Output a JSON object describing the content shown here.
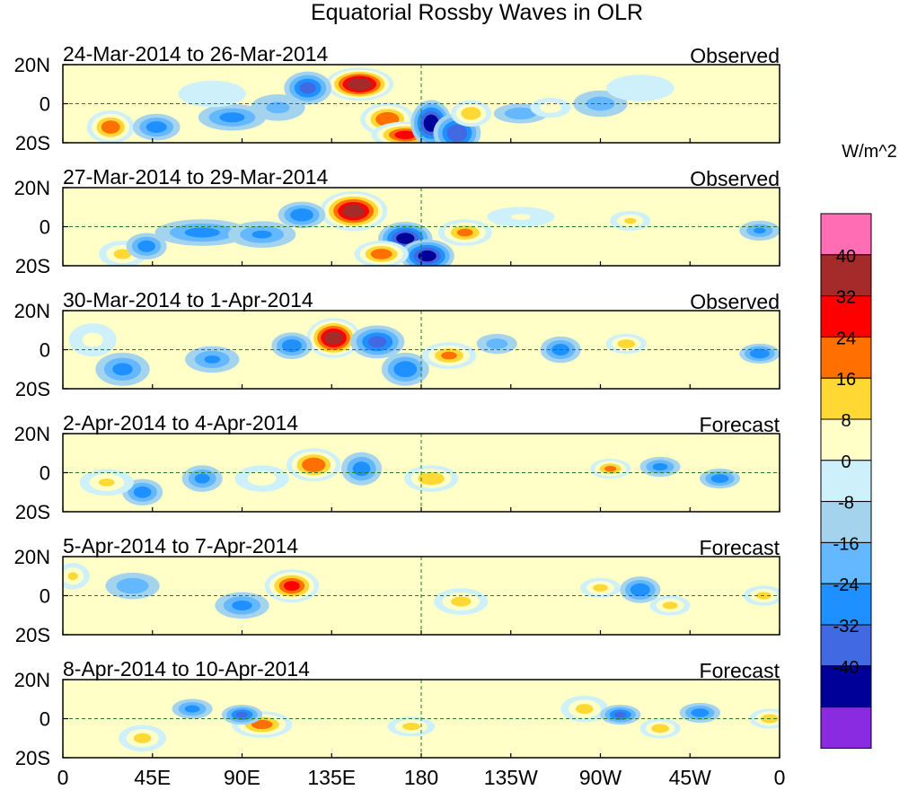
{
  "chart_data": {
    "type": "heatmap",
    "title": "Equatorial Rossby Waves in OLR",
    "units": "W/m^2",
    "x_tick_labels": [
      "0",
      "45E",
      "90E",
      "135E",
      "180",
      "135W",
      "90W",
      "45W",
      "0"
    ],
    "x_tick_lon": [
      0,
      45,
      90,
      135,
      180,
      225,
      270,
      315,
      360
    ],
    "y_tick_labels": [
      "20N",
      "0",
      "20S"
    ],
    "y_tick_lat": [
      20,
      0,
      -20
    ],
    "xlim": [
      0,
      360
    ],
    "ylim": [
      -20,
      20
    ],
    "colorbar": {
      "levels": [
        -40,
        -32,
        -24,
        -16,
        -8,
        0,
        8,
        16,
        24,
        32,
        40
      ],
      "labels": [
        "40",
        "32",
        "24",
        "16",
        "8",
        "0",
        "-8",
        "-16",
        "-24",
        "-32",
        "-40"
      ],
      "colors_low_to_high": [
        "#8a2be2",
        "#000099",
        "#4169e1",
        "#1e90ff",
        "#63b8ff",
        "#a4d3ee",
        "#cdf0fa",
        "#ffffc8",
        "#ffd834",
        "#ff7000",
        "#ff0000",
        "#a52a2a",
        "#ff6eb4"
      ]
    },
    "panels": [
      {
        "label": "24-Mar-2014 to 26-Mar-2014",
        "status": "Observed",
        "anomalies": [
          {
            "lon": 149,
            "lat": 10,
            "rx": 10,
            "ry": 5,
            "value": 45
          },
          {
            "lon": 123,
            "lat": 8,
            "rx": 7,
            "ry": 5,
            "value": -26
          },
          {
            "lon": 163,
            "lat": -8,
            "rx": 8,
            "ry": 5,
            "value": 30
          },
          {
            "lon": 172,
            "lat": -16,
            "rx": 10,
            "ry": 4,
            "value": 33
          },
          {
            "lon": 185,
            "lat": -10,
            "rx": 6,
            "ry": 7,
            "value": -36
          },
          {
            "lon": 198,
            "lat": -15,
            "rx": 7,
            "ry": 6,
            "value": -30
          },
          {
            "lon": 205,
            "lat": -5,
            "rx": 6,
            "ry": 4,
            "value": 22
          },
          {
            "lon": 24,
            "lat": -12,
            "rx": 7,
            "ry": 5,
            "value": 28
          },
          {
            "lon": 47,
            "lat": -12,
            "rx": 7,
            "ry": 4,
            "value": -20
          },
          {
            "lon": 85,
            "lat": -7,
            "rx": 10,
            "ry": 4,
            "value": -18
          },
          {
            "lon": 230,
            "lat": -5,
            "rx": 8,
            "ry": 3,
            "value": -14
          },
          {
            "lon": 245,
            "lat": -2,
            "rx": 6,
            "ry": 3,
            "value": 12
          },
          {
            "lon": 75,
            "lat": 5,
            "rx": 10,
            "ry": 4,
            "value": 7
          },
          {
            "lon": 108,
            "lat": -2,
            "rx": 8,
            "ry": 4,
            "value": -10
          },
          {
            "lon": 270,
            "lat": 0,
            "rx": 8,
            "ry": 4,
            "value": -12
          },
          {
            "lon": 290,
            "lat": 8,
            "rx": 10,
            "ry": 4,
            "value": 6
          }
        ]
      },
      {
        "label": "27-Mar-2014 to 29-Mar-2014",
        "status": "Observed",
        "anomalies": [
          {
            "lon": 146,
            "lat": 8,
            "rx": 10,
            "ry": 6,
            "value": 42
          },
          {
            "lon": 120,
            "lat": 6,
            "rx": 7,
            "ry": 4,
            "value": -22
          },
          {
            "lon": 172,
            "lat": -6,
            "rx": 8,
            "ry": 5,
            "value": -34
          },
          {
            "lon": 183,
            "lat": -15,
            "rx": 8,
            "ry": 5,
            "value": -34
          },
          {
            "lon": 202,
            "lat": -3,
            "rx": 8,
            "ry": 4,
            "value": 24
          },
          {
            "lon": 160,
            "lat": -14,
            "rx": 8,
            "ry": 4,
            "value": 28
          },
          {
            "lon": 30,
            "lat": -14,
            "rx": 7,
            "ry": 4,
            "value": 18
          },
          {
            "lon": 42,
            "lat": -10,
            "rx": 6,
            "ry": 4,
            "value": -20
          },
          {
            "lon": 70,
            "lat": -3,
            "rx": 14,
            "ry": 4,
            "value": -18
          },
          {
            "lon": 100,
            "lat": -4,
            "rx": 10,
            "ry": 4,
            "value": -16
          },
          {
            "lon": 285,
            "lat": 3,
            "rx": 6,
            "ry": 3,
            "value": 16
          },
          {
            "lon": 350,
            "lat": -2,
            "rx": 6,
            "ry": 3,
            "value": -16
          },
          {
            "lon": 230,
            "lat": 5,
            "rx": 10,
            "ry": 3,
            "value": 8
          }
        ]
      },
      {
        "label": "30-Mar-2014 to 1-Apr-2014",
        "status": "Observed",
        "anomalies": [
          {
            "lon": 136,
            "lat": 6,
            "rx": 8,
            "ry": 6,
            "value": 43
          },
          {
            "lon": 115,
            "lat": 2,
            "rx": 6,
            "ry": 4,
            "value": -22
          },
          {
            "lon": 158,
            "lat": 4,
            "rx": 8,
            "ry": 5,
            "value": -26
          },
          {
            "lon": 172,
            "lat": -10,
            "rx": 7,
            "ry": 5,
            "value": -22
          },
          {
            "lon": 194,
            "lat": -3,
            "rx": 8,
            "ry": 4,
            "value": 24
          },
          {
            "lon": 218,
            "lat": 3,
            "rx": 6,
            "ry": 3,
            "value": -12
          },
          {
            "lon": 250,
            "lat": 0,
            "rx": 6,
            "ry": 4,
            "value": -20
          },
          {
            "lon": 283,
            "lat": 3,
            "rx": 6,
            "ry": 3,
            "value": 20
          },
          {
            "lon": 350,
            "lat": -2,
            "rx": 6,
            "ry": 3,
            "value": -22
          },
          {
            "lon": 30,
            "lat": -10,
            "rx": 8,
            "ry": 5,
            "value": -18
          },
          {
            "lon": 75,
            "lat": -5,
            "rx": 8,
            "ry": 4,
            "value": -16
          },
          {
            "lon": 15,
            "lat": 5,
            "rx": 7,
            "ry": 5,
            "value": 10
          }
        ]
      },
      {
        "label": "2-Apr-2014 to 4-Apr-2014",
        "status": "Forecast",
        "anomalies": [
          {
            "lon": 126,
            "lat": 4,
            "rx": 8,
            "ry": 5,
            "value": 30
          },
          {
            "lon": 150,
            "lat": 2,
            "rx": 6,
            "ry": 5,
            "value": -20
          },
          {
            "lon": 185,
            "lat": -3,
            "rx": 8,
            "ry": 4,
            "value": 22
          },
          {
            "lon": 275,
            "lat": 2,
            "rx": 6,
            "ry": 3,
            "value": 24
          },
          {
            "lon": 300,
            "lat": 3,
            "rx": 6,
            "ry": 3,
            "value": -18
          },
          {
            "lon": 330,
            "lat": -3,
            "rx": 6,
            "ry": 3,
            "value": -20
          },
          {
            "lon": 40,
            "lat": -10,
            "rx": 6,
            "ry": 4,
            "value": -20
          },
          {
            "lon": 70,
            "lat": -3,
            "rx": 6,
            "ry": 4,
            "value": -18
          },
          {
            "lon": 22,
            "lat": -5,
            "rx": 8,
            "ry": 4,
            "value": 16
          },
          {
            "lon": 100,
            "lat": -3,
            "rx": 8,
            "ry": 4,
            "value": 12
          }
        ]
      },
      {
        "label": "5-Apr-2014 to 7-Apr-2014",
        "status": "Forecast",
        "anomalies": [
          {
            "lon": 115,
            "lat": 5,
            "rx": 8,
            "ry": 5,
            "value": 32
          },
          {
            "lon": 200,
            "lat": -3,
            "rx": 8,
            "ry": 4,
            "value": 18
          },
          {
            "lon": 290,
            "lat": 3,
            "rx": 6,
            "ry": 4,
            "value": -22
          },
          {
            "lon": 305,
            "lat": -5,
            "rx": 6,
            "ry": 3,
            "value": 18
          },
          {
            "lon": 270,
            "lat": 4,
            "rx": 6,
            "ry": 3,
            "value": 18
          },
          {
            "lon": 90,
            "lat": -5,
            "rx": 8,
            "ry": 4,
            "value": -18
          },
          {
            "lon": 5,
            "lat": 10,
            "rx": 5,
            "ry": 4,
            "value": 16
          },
          {
            "lon": 35,
            "lat": 5,
            "rx": 8,
            "ry": 4,
            "value": -14
          },
          {
            "lon": 352,
            "lat": 0,
            "rx": 6,
            "ry": 3,
            "value": 18
          }
        ]
      },
      {
        "label": "8-Apr-2014 to 10-Apr-2014",
        "status": "Forecast",
        "anomalies": [
          {
            "lon": 100,
            "lat": -3,
            "rx": 9,
            "ry": 4,
            "value": 26
          },
          {
            "lon": 90,
            "lat": 2,
            "rx": 6,
            "ry": 3,
            "value": -24
          },
          {
            "lon": 65,
            "lat": 5,
            "rx": 6,
            "ry": 3,
            "value": -18
          },
          {
            "lon": 175,
            "lat": -4,
            "rx": 7,
            "ry": 3,
            "value": 18
          },
          {
            "lon": 262,
            "lat": 5,
            "rx": 7,
            "ry": 4,
            "value": 18
          },
          {
            "lon": 280,
            "lat": 2,
            "rx": 6,
            "ry": 3,
            "value": -24
          },
          {
            "lon": 300,
            "lat": -5,
            "rx": 6,
            "ry": 3,
            "value": 20
          },
          {
            "lon": 320,
            "lat": 3,
            "rx": 6,
            "ry": 3,
            "value": -20
          },
          {
            "lon": 355,
            "lat": 0,
            "rx": 6,
            "ry": 3,
            "value": 20
          },
          {
            "lon": 40,
            "lat": -10,
            "rx": 7,
            "ry": 4,
            "value": 18
          }
        ]
      }
    ]
  }
}
